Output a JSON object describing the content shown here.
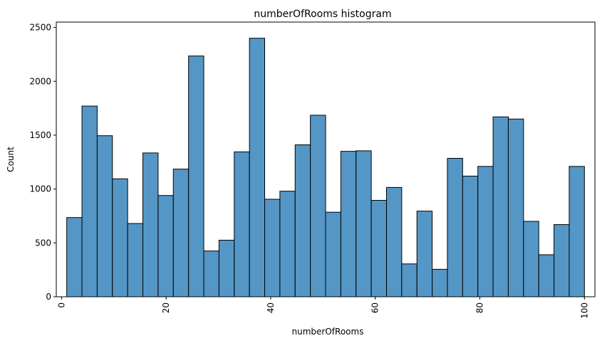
{
  "chart_data": {
    "type": "bar",
    "title": "numberOfRooms histogram",
    "xlabel": "numberOfRooms",
    "ylabel": "Count",
    "xlim": [
      -1,
      102
    ],
    "ylim": [
      0,
      2550
    ],
    "xticks": [
      0,
      20,
      40,
      60,
      80,
      100
    ],
    "yticks": [
      0,
      500,
      1000,
      1500,
      2000,
      2500
    ],
    "grid": false,
    "legend": "none",
    "bin_edges": [
      1,
      3.9118,
      6.8235,
      9.7353,
      12.6471,
      15.5588,
      18.4706,
      21.3824,
      24.2941,
      27.2059,
      30.1176,
      33.0294,
      35.9412,
      38.8529,
      41.7647,
      44.6765,
      47.5882,
      50.5,
      53.4118,
      56.3235,
      59.2353,
      62.1471,
      65.0588,
      67.9706,
      70.8824,
      73.7941,
      76.7059,
      79.6176,
      82.5294,
      85.4412,
      88.3529,
      91.2647,
      94.1765,
      97.0882,
      100
    ],
    "values": [
      735,
      1770,
      1495,
      1095,
      680,
      1335,
      940,
      1185,
      2235,
      425,
      525,
      1345,
      2400,
      905,
      980,
      1410,
      1685,
      785,
      1350,
      1355,
      895,
      1015,
      305,
      795,
      255,
      1285,
      1120,
      1210,
      1670,
      1650,
      700,
      390,
      670,
      1210
    ],
    "colors": {
      "bar_fill": "#5497c6",
      "bar_edge": "#000000"
    }
  }
}
